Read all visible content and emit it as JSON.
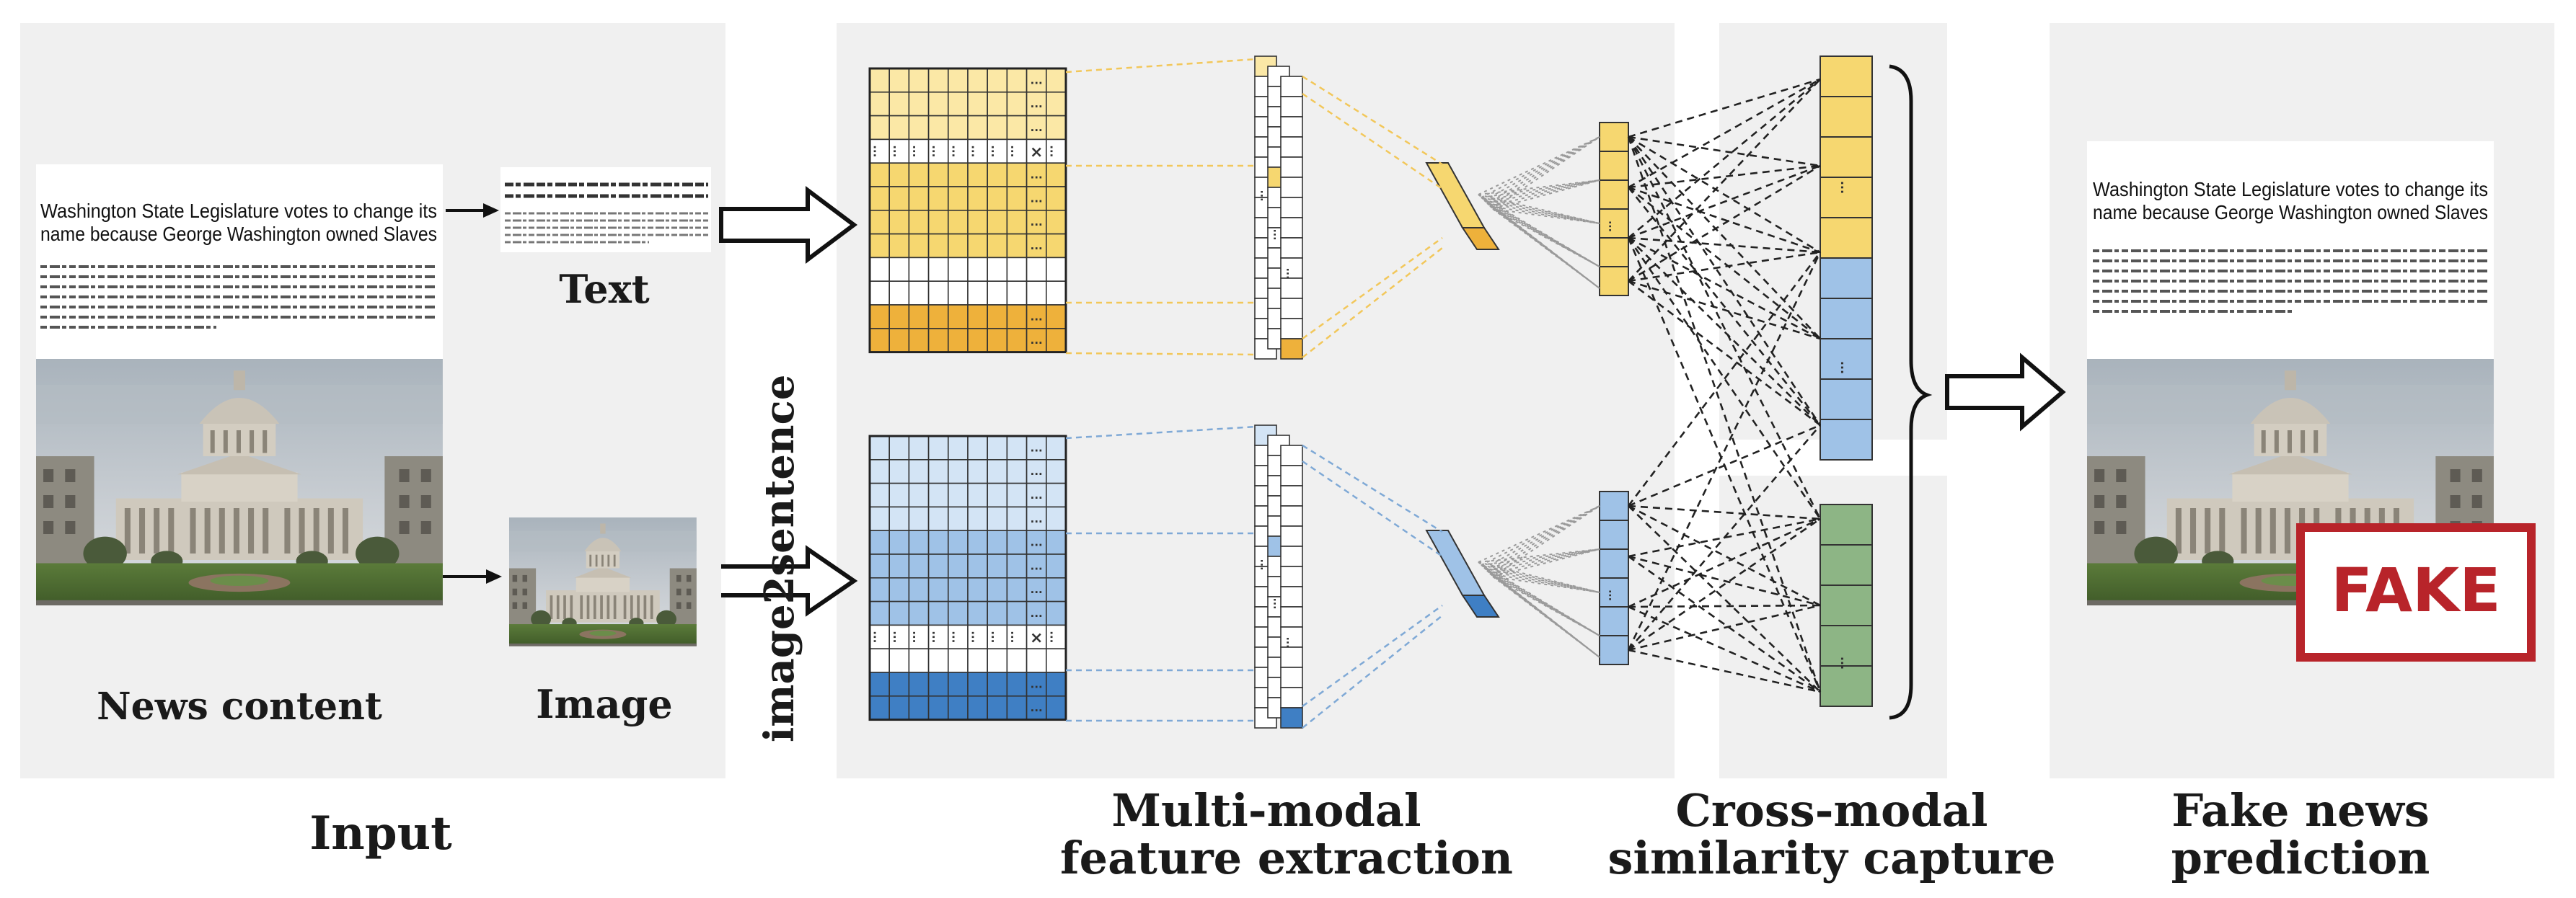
{
  "panels": {
    "input": {
      "title": "Input"
    },
    "extraction": {
      "title_line1": "Multi-modal",
      "title_line2": "feature extraction"
    },
    "similarity": {
      "title_line1": "Cross-modal",
      "title_line2": "similarity capture"
    },
    "prediction": {
      "title_line1": "Fake news",
      "title_line2": "prediction"
    }
  },
  "news": {
    "headline": "Washington State Legislature votes to change its name because George Washington owned Slaves",
    "headline_line1": "Washington State Legislature votes to change its",
    "headline_line2": "name because George Washington owned Slaves",
    "label": "News content"
  },
  "text_label": "Text",
  "image_label": "Image",
  "image2sentence_label": "image2sentence",
  "fake_stamp": "FAKE",
  "ellipsis": "...",
  "colors": {
    "panel_bg": "#f0f0f0",
    "yellow_light": "#fbe8a6",
    "yellow_mid": "#f6d770",
    "yellow_dark": "#eeb13b",
    "blue_light": "#d3e4f5",
    "blue_mid": "#9fc2e7",
    "blue_dark": "#3f7fc4",
    "green": "#8db585",
    "fake_red": "#b8242a"
  }
}
